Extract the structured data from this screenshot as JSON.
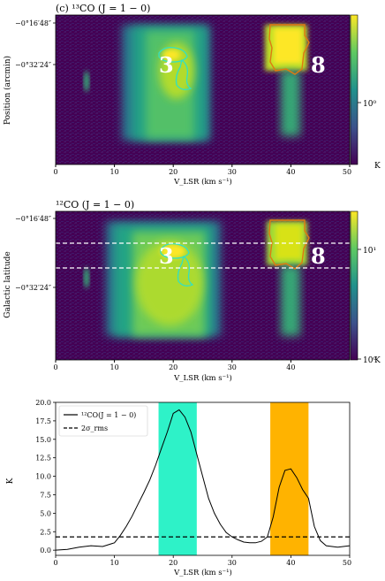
{
  "figure": {
    "panel_a": {
      "title": "(c) ¹³CO (J = 1 − 0)",
      "ylabel": "Position (arcmin)",
      "xlabel": "V_LSR  (km s⁻¹)",
      "yticks": [
        "−0°16′48″",
        "−0°32′24″"
      ],
      "xticks": [
        "0",
        "10",
        "20",
        "30",
        "40",
        "50"
      ],
      "colorbar_ticks": [
        "10⁰"
      ],
      "colorbar_unit": "K",
      "clump_labels": [
        "3",
        "8"
      ]
    },
    "panel_b": {
      "title": "¹²CO (J = 1 − 0)",
      "ylabel": "Galactic latitude",
      "xlabel": "V_LSR  (km s⁻¹)",
      "yticks": [
        "−0°16′48″",
        "−0°32′24″"
      ],
      "xticks": [
        "0",
        "10",
        "20",
        "30",
        "40"
      ],
      "colorbar_ticks": [
        "10¹",
        "10⁰"
      ],
      "colorbar_unit": "K",
      "clump_labels": [
        "3",
        "8"
      ]
    },
    "panel_c": {
      "ylabel": "K",
      "xlabel": "V_LSR  (km s⁻¹)",
      "legend": [
        "¹²CO(J = 1 − 0)",
        "2σ_rms"
      ]
    }
  },
  "colors": {
    "viridis_dark": "#440154",
    "viridis_mid": "#21918c",
    "viridis_bright": "#fde725",
    "cyan_band": "#2ef2c8",
    "orange_band": "#ffb300",
    "clump3_contour": "#34e0c0",
    "clump8_contour": "#e07a10"
  },
  "chart_data": [
    {
      "type": "heatmap",
      "title": "(c) ¹³CO (J = 1 − 0)",
      "xlabel": "V_LSR (km s⁻¹)",
      "ylabel": "Position (arcmin)",
      "xlim": [
        0,
        50
      ],
      "colorscale": "viridis, log",
      "colorbar_unit": "K",
      "features": [
        {
          "label": "3",
          "v_center": 20,
          "v_range": [
            15,
            26
          ]
        },
        {
          "label": "8",
          "v_center": 40,
          "v_range": [
            37,
            43
          ]
        },
        {
          "label": "",
          "v_center": 5,
          "v_range": [
            4.5,
            6
          ]
        }
      ]
    },
    {
      "type": "heatmap",
      "title": "¹²CO (J = 1 − 0)",
      "xlabel": "V_LSR (km s⁻¹)",
      "ylabel": "Galactic latitude",
      "xlim": [
        0,
        50
      ],
      "colorscale": "viridis, log",
      "colorbar_unit": "K",
      "features": [
        {
          "label": "3",
          "v_center": 20,
          "v_range": [
            10,
            27
          ]
        },
        {
          "label": "8",
          "v_center": 40,
          "v_range": [
            37,
            43
          ]
        },
        {
          "label": "",
          "v_center": 5,
          "v_range": [
            4.5,
            6
          ]
        }
      ]
    },
    {
      "type": "line",
      "xlabel": "V_LSR (km s⁻¹)",
      "ylabel": "K",
      "xlim": [
        0,
        50
      ],
      "ylim": [
        -0.7,
        20
      ],
      "xticks": [
        0,
        10,
        20,
        30,
        40,
        50
      ],
      "yticks": [
        0.0,
        2.5,
        5.0,
        7.5,
        10.0,
        12.5,
        15.0,
        17.5,
        20.0
      ],
      "legend_position": "top-left",
      "series": [
        {
          "name": "¹²CO(J = 1 − 0)",
          "style": "solid",
          "x": [
            0,
            2,
            4,
            6,
            8,
            10,
            11,
            12,
            13,
            14,
            15,
            16,
            17,
            18,
            19,
            20,
            21,
            22,
            23,
            24,
            25,
            26,
            27,
            28,
            29,
            30,
            31,
            32,
            33,
            34,
            35,
            36,
            37,
            38,
            39,
            40,
            41,
            42,
            43,
            44,
            45,
            46,
            48,
            50
          ],
          "y": [
            0.0,
            0.1,
            0.4,
            0.6,
            0.5,
            1.0,
            2.0,
            3.2,
            4.6,
            6.2,
            7.8,
            9.5,
            11.5,
            13.8,
            16.0,
            18.5,
            19.0,
            18.0,
            16.0,
            13.0,
            10.0,
            7.0,
            5.0,
            3.5,
            2.4,
            1.8,
            1.4,
            1.1,
            1.0,
            1.0,
            1.2,
            1.8,
            4.5,
            8.5,
            10.8,
            11.0,
            9.8,
            8.2,
            7.0,
            3.2,
            1.3,
            0.6,
            0.4,
            0.6
          ]
        },
        {
          "name": "2σ_rms",
          "style": "dashed",
          "x": [
            0,
            50
          ],
          "y": [
            1.8,
            1.8
          ]
        }
      ],
      "bands": [
        {
          "x_range": [
            17.5,
            24
          ],
          "color": "#2ef2c8"
        },
        {
          "x_range": [
            36.5,
            43
          ],
          "color": "#ffb300"
        }
      ]
    }
  ]
}
